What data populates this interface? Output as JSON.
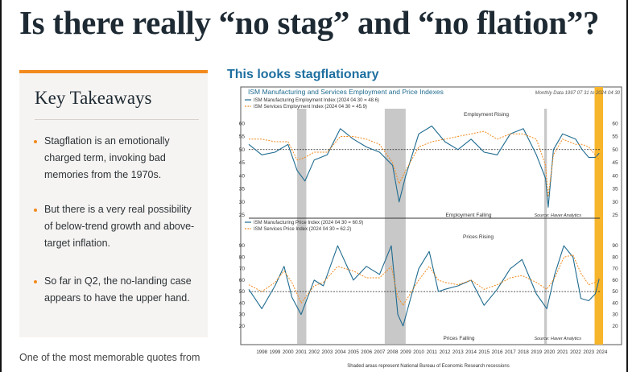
{
  "page": {
    "title": "Is there really “no stag” and “no flation”?"
  },
  "sidebar": {
    "title": "Key Takeaways",
    "items": [
      {
        "label": "Stagflation is an emotionally charged term, invoking bad memories from the 1970s."
      },
      {
        "label": "But there is a very real possibility of below-trend growth and above-target inflation."
      },
      {
        "label": "So far in Q2, the no-landing case appears to have the upper hand."
      }
    ]
  },
  "body": {
    "paragraph": "One of the most memorable quotes from"
  },
  "chart": {
    "heading": "This looks stagflationary",
    "chart_title": "ISM Manufacturing and Services Employment and Price Indexes",
    "date_note": "Monthly Data 1997 07 31 to 2024 04 30",
    "footnote": "Shaded areas represent National Bureau of Economic Research recessions",
    "source": "Source:   Haver Analytics",
    "colors": {
      "manufacturing": "#1f6b8f",
      "services": "#f28a1e",
      "recession": "#c8c8c8",
      "highlight": "#f7b52b"
    }
  },
  "chart_data": [
    {
      "type": "line",
      "panel": "top",
      "annotations": [
        "Employment Rising",
        "Employment Falling"
      ],
      "series": [
        {
          "name": "ISM Manufacturing Employment Index (2024 04 30 = 48.6)",
          "x": [
            1997.5,
            1998.5,
            1999.5,
            2000.5,
            2001.2,
            2001.8,
            2002.5,
            2003.5,
            2004.5,
            2005.5,
            2006.5,
            2007.5,
            2008.5,
            2009.0,
            2009.5,
            2010.5,
            2011.5,
            2012.5,
            2013.5,
            2014.5,
            2015.5,
            2016.5,
            2017.5,
            2018.5,
            2019.5,
            2020.2,
            2020.4,
            2020.8,
            2021.5,
            2022.5,
            2023.0,
            2023.5,
            2024.0,
            2024.3
          ],
          "y": [
            52,
            48,
            49,
            52,
            42,
            38,
            46,
            48,
            58,
            54,
            51,
            49,
            44,
            30,
            40,
            56,
            59,
            53,
            50,
            54,
            49,
            48,
            56,
            58,
            48,
            39,
            28,
            50,
            56,
            54,
            50,
            47,
            47,
            48.6
          ]
        },
        {
          "name": "ISM Services Employment Index (2024 04 30 = 45.9)",
          "x": [
            1997.5,
            1998.5,
            1999.5,
            2000.5,
            2001.2,
            2001.8,
            2002.5,
            2003.5,
            2004.5,
            2005.5,
            2006.5,
            2007.5,
            2008.5,
            2009.0,
            2009.5,
            2010.5,
            2011.5,
            2012.5,
            2013.5,
            2014.5,
            2015.5,
            2016.5,
            2017.5,
            2018.5,
            2019.5,
            2020.2,
            2020.4,
            2020.8,
            2021.5,
            2022.5,
            2023.0,
            2023.5,
            2024.0,
            2024.3
          ],
          "y": [
            54,
            54,
            53,
            53,
            46,
            47,
            49,
            49,
            55,
            55,
            54,
            52,
            45,
            37,
            42,
            51,
            53,
            54,
            55,
            56,
            57,
            54,
            56,
            56,
            54,
            44,
            32,
            48,
            54,
            52,
            52,
            51,
            48,
            45.9
          ]
        }
      ],
      "ylim": [
        25,
        65
      ],
      "yticks": [
        25,
        30,
        35,
        40,
        45,
        50,
        55,
        60
      ]
    },
    {
      "type": "line",
      "panel": "bottom",
      "annotations": [
        "Prices Rising",
        "Prices Falling"
      ],
      "series": [
        {
          "name": "ISM Manufacturing Price Index (2024 04 30 = 60.9)",
          "x": [
            1997.5,
            1998.5,
            1999.5,
            2000.2,
            2000.8,
            2001.5,
            2002.5,
            2003.2,
            2004.3,
            2005.5,
            2006.5,
            2007.5,
            2008.4,
            2008.9,
            2009.3,
            2010.5,
            2011.3,
            2012.0,
            2012.5,
            2013.5,
            2014.5,
            2015.5,
            2016.5,
            2017.5,
            2018.4,
            2019.5,
            2020.3,
            2020.9,
            2021.6,
            2022.3,
            2022.9,
            2023.5,
            2024.0,
            2024.3
          ],
          "y": [
            52,
            35,
            55,
            72,
            45,
            30,
            60,
            55,
            90,
            60,
            72,
            65,
            90,
            30,
            20,
            70,
            85,
            50,
            52,
            55,
            60,
            38,
            52,
            70,
            78,
            48,
            35,
            65,
            90,
            80,
            44,
            42,
            48,
            60.9
          ]
        },
        {
          "name": "ISM Services Price Index (2024 04 30 = 62.2)",
          "x": [
            1997.5,
            1998.5,
            1999.5,
            2000.2,
            2000.8,
            2001.5,
            2002.5,
            2003.2,
            2004.3,
            2005.5,
            2006.5,
            2007.5,
            2008.4,
            2008.9,
            2009.3,
            2010.5,
            2011.3,
            2012.0,
            2012.5,
            2013.5,
            2014.5,
            2015.5,
            2016.5,
            2017.5,
            2018.4,
            2019.5,
            2020.3,
            2020.9,
            2021.6,
            2022.3,
            2022.9,
            2023.5,
            2024.0,
            2024.3
          ],
          "y": [
            56,
            50,
            58,
            68,
            58,
            40,
            55,
            58,
            72,
            68,
            62,
            62,
            72,
            45,
            38,
            60,
            72,
            60,
            58,
            56,
            60,
            52,
            56,
            62,
            64,
            58,
            52,
            62,
            80,
            82,
            66,
            56,
            58,
            62.2
          ]
        }
      ],
      "ylim": [
        10,
        100
      ],
      "yticks": [
        20,
        30,
        40,
        50,
        60,
        70,
        80,
        90
      ]
    }
  ],
  "x_axis": {
    "ticks": [
      "1998",
      "1999",
      "2000",
      "2001",
      "2002",
      "2003",
      "2004",
      "2005",
      "2006",
      "2007",
      "2008",
      "2009",
      "2010",
      "2011",
      "2012",
      "2013",
      "2014",
      "2015",
      "2016",
      "2017",
      "2018",
      "2019",
      "2020",
      "2021",
      "2022",
      "2023",
      "2024"
    ]
  },
  "recessions": [
    [
      2001.2,
      2001.9
    ],
    [
      2007.9,
      2009.5
    ],
    [
      2020.1,
      2020.3
    ]
  ]
}
